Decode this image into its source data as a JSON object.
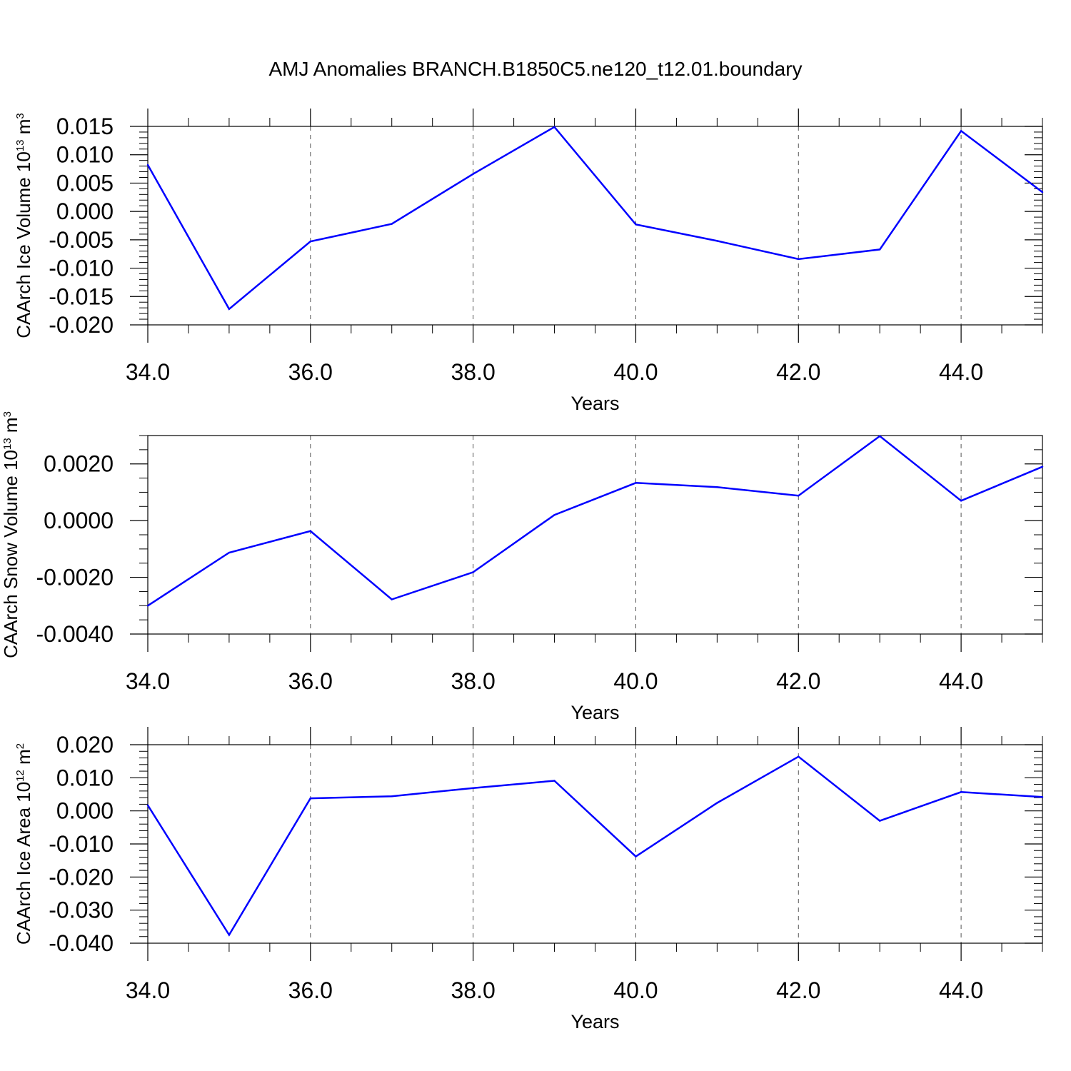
{
  "title": "AMJ Anomalies BRANCH.B1850C5.ne120_t12.01.boundary",
  "line_color": "#0000ff",
  "chart_data": [
    {
      "type": "line",
      "xlabel": "Years",
      "ylabel": {
        "text": "CAArch Ice Volume 10",
        "exp": "13",
        "unit": " m",
        "unit_exp": "3"
      },
      "x": [
        34,
        35,
        36,
        37,
        38,
        39,
        40,
        41,
        42,
        43,
        44,
        45
      ],
      "series": [
        {
          "values": [
            0.0082,
            -0.0172,
            -0.0053,
            -0.0022,
            0.0066,
            0.0149,
            -0.0023,
            -0.0052,
            -0.0084,
            -0.0067,
            0.0142,
            0.0034
          ]
        }
      ],
      "xlim": [
        34,
        45
      ],
      "ylim": [
        -0.02,
        0.015
      ],
      "xticks": [
        "34.0",
        "36.0",
        "38.0",
        "40.0",
        "42.0",
        "44.0"
      ],
      "yticks": [
        "0.015",
        "0.010",
        "0.005",
        "0.000",
        "-0.005",
        "-0.010",
        "-0.015",
        "-0.020"
      ],
      "grid": "vertical dashed at major x ticks"
    },
    {
      "type": "line",
      "xlabel": "Years",
      "ylabel": {
        "text": "CAArch Snow Volume 10",
        "exp": "13",
        "unit": " m",
        "unit_exp": "3"
      },
      "x": [
        34,
        35,
        36,
        37,
        38,
        39,
        40,
        41,
        42,
        43,
        44,
        45
      ],
      "series": [
        {
          "values": [
            -0.003,
            -0.00113,
            -0.00037,
            -0.00278,
            -0.00182,
            0.0002,
            0.00133,
            0.00118,
            0.00088,
            0.00298,
            0.0007,
            0.0019
          ]
        }
      ],
      "xlim": [
        34,
        45
      ],
      "ylim": [
        -0.004,
        0.003
      ],
      "xticks": [
        "34.0",
        "36.0",
        "38.0",
        "40.0",
        "42.0",
        "44.0"
      ],
      "yticks": [
        "0.0020",
        "0.0000",
        "-0.0020",
        "-0.0040"
      ],
      "grid": "vertical dashed at major x ticks"
    },
    {
      "type": "line",
      "xlabel": "Years",
      "ylabel": {
        "text": "CAArch Ice Area 10",
        "exp": "12",
        "unit": " m",
        "unit_exp": "2"
      },
      "x": [
        34,
        35,
        36,
        37,
        38,
        39,
        40,
        41,
        42,
        43,
        44,
        45
      ],
      "series": [
        {
          "values": [
            0.0017,
            -0.0375,
            0.0038,
            0.0044,
            0.0069,
            0.0091,
            -0.0138,
            0.0024,
            0.0164,
            -0.003,
            0.0057,
            0.0042
          ]
        }
      ],
      "xlim": [
        34,
        45
      ],
      "ylim": [
        -0.04,
        0.02
      ],
      "xticks": [
        "34.0",
        "36.0",
        "38.0",
        "40.0",
        "42.0",
        "44.0"
      ],
      "yticks": [
        "0.020",
        "0.010",
        "0.000",
        "-0.010",
        "-0.020",
        "-0.030",
        "-0.040"
      ],
      "grid": "vertical dashed at major x ticks"
    }
  ]
}
